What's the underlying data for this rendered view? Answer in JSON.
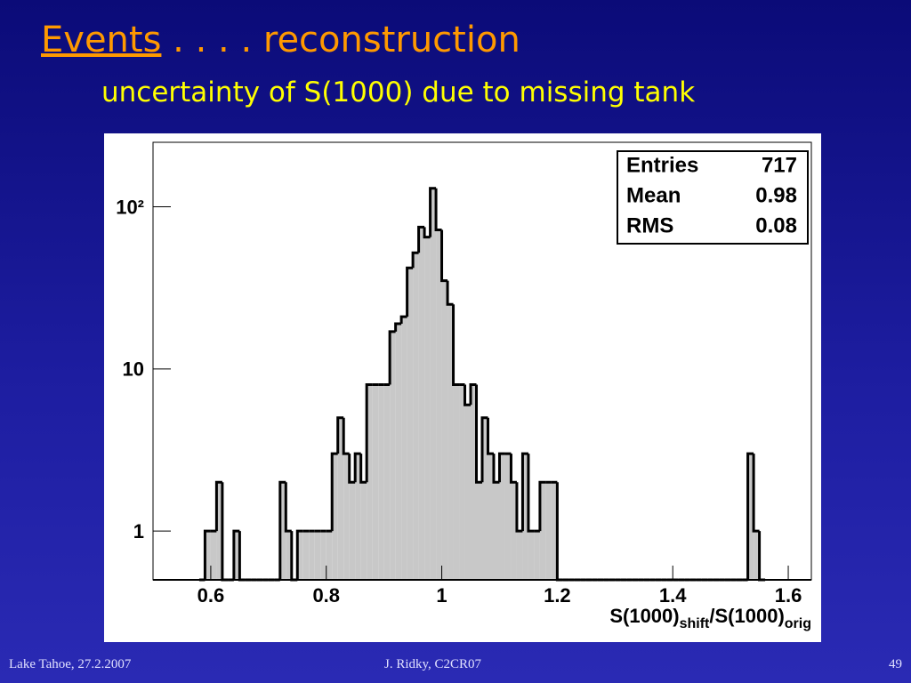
{
  "title": "Events",
  "title_rest": " . . . . reconstruction",
  "subtitle": "uncertainty of S(1000) due to missing tank",
  "footer": {
    "left": "Lake Tahoe, 27.2.2007",
    "center": "J. Ridky, C2CR07",
    "right": "49"
  },
  "chart_data": {
    "type": "histogram",
    "log_y": true,
    "color": "#c8c8c8",
    "edge_color": "#000000",
    "bins": [
      0.58,
      0.59,
      0.6,
      0.61,
      0.62,
      0.63,
      0.64,
      0.65,
      0.66,
      0.67,
      0.68,
      0.69,
      0.7,
      0.71,
      0.72,
      0.73,
      0.74,
      0.75,
      0.76,
      0.77,
      0.78,
      0.79,
      0.8,
      0.81,
      0.82,
      0.83,
      0.84,
      0.85,
      0.86,
      0.87,
      0.88,
      0.89,
      0.9,
      0.91,
      0.92,
      0.93,
      0.94,
      0.95,
      0.96,
      0.97,
      0.98,
      0.99,
      1.0,
      1.01,
      1.02,
      1.03,
      1.04,
      1.05,
      1.06,
      1.07,
      1.08,
      1.09,
      1.1,
      1.11,
      1.12,
      1.13,
      1.14,
      1.15,
      1.16,
      1.17,
      1.18,
      1.19,
      1.2,
      1.21,
      1.22,
      1.23,
      1.24,
      1.25,
      1.26,
      1.27,
      1.28,
      1.29,
      1.3,
      1.31,
      1.32,
      1.33,
      1.34,
      1.35,
      1.36,
      1.37,
      1.38,
      1.39,
      1.4,
      1.41,
      1.42,
      1.43,
      1.44,
      1.45,
      1.46,
      1.47,
      1.48,
      1.49,
      1.5,
      1.51,
      1.52,
      1.53,
      1.54,
      1.55,
      1.56
    ],
    "values": [
      0,
      1,
      1,
      2,
      0,
      0,
      1,
      0,
      0,
      0,
      0,
      0,
      0,
      0,
      2,
      1,
      0,
      1,
      1,
      1,
      1,
      1,
      1,
      3,
      5,
      3,
      2,
      3,
      2,
      8,
      8,
      8,
      8,
      17,
      19,
      21,
      42,
      52,
      75,
      65,
      130,
      72,
      35,
      25,
      8,
      8,
      6,
      8,
      2,
      5,
      3,
      2,
      3,
      3,
      2,
      1,
      3,
      1,
      1,
      2,
      2,
      2,
      0,
      0,
      0,
      0,
      0,
      0,
      0,
      0,
      0,
      0,
      0,
      0,
      0,
      0,
      0,
      0,
      0,
      0,
      0,
      0,
      0,
      0,
      0,
      0,
      0,
      0,
      0,
      0,
      0,
      0,
      0,
      0,
      0,
      3,
      1,
      0
    ],
    "xlim": [
      0.5,
      1.64
    ],
    "ylim": [
      0.5,
      250
    ],
    "xticks": [
      0.6,
      0.8,
      1,
      1.2,
      1.4,
      1.6
    ],
    "yticks": [
      1,
      10,
      {
        "value": 100,
        "label": "10²"
      }
    ],
    "xlabel": [
      "S(1000)",
      "shift",
      "/S(1000)",
      "orig"
    ],
    "stats": [
      {
        "label": "Entries",
        "value": 717
      },
      {
        "label": "Mean",
        "value": 0.98
      },
      {
        "label": "RMS",
        "value": 0.08
      }
    ]
  }
}
